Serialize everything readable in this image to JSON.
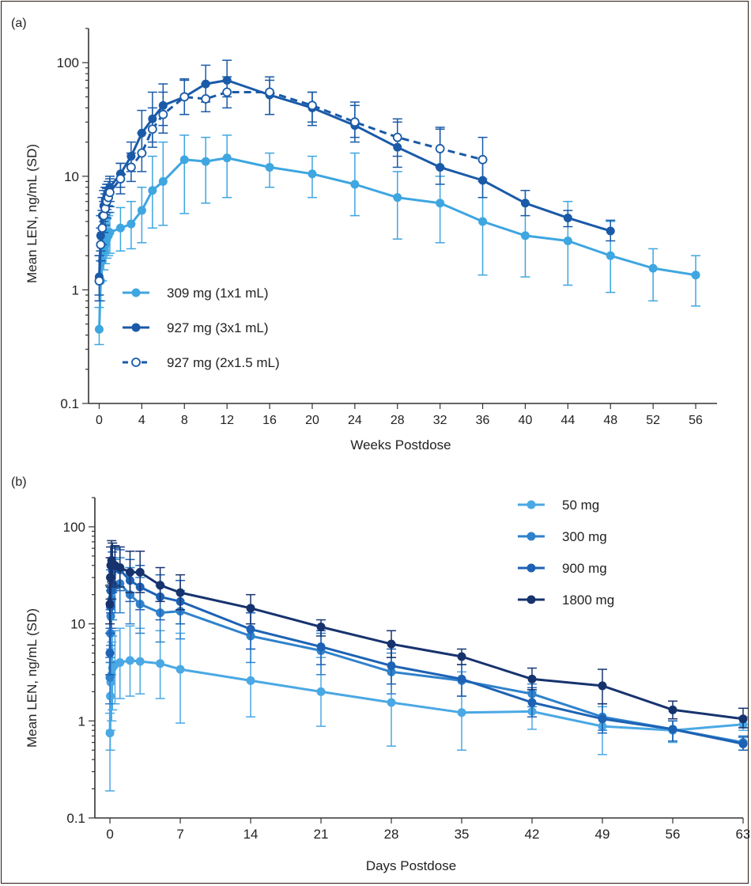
{
  "chart_data": [
    {
      "type": "line",
      "panel_label": "(a)",
      "xlabel": "Weeks Postdose",
      "ylabel": "Mean LEN, ng/mL (SD)",
      "y_scale": "log",
      "xlim": [
        -1,
        58
      ],
      "ylim": [
        0.1,
        200
      ],
      "x_ticks": [
        0,
        4,
        8,
        12,
        16,
        20,
        24,
        28,
        32,
        36,
        40,
        44,
        48,
        52,
        56
      ],
      "y_ticks": [
        0.1,
        1,
        10,
        100
      ],
      "y_tick_labels": [
        "0.1",
        "1",
        "10",
        "100"
      ],
      "grid": false,
      "legend_position": "bottom-left",
      "series": [
        {
          "name": "309 mg (1x1 mL)",
          "color": "#3ea6e0",
          "marker": "filled-circle",
          "line_style": "solid",
          "x": [
            0,
            0.14,
            0.29,
            0.43,
            0.57,
            0.71,
            0.86,
            1,
            2,
            3,
            4,
            5,
            6,
            8,
            10,
            12,
            16,
            20,
            24,
            28,
            32,
            36,
            40,
            44,
            48,
            52,
            56
          ],
          "y": [
            0.45,
            1.2,
            1.8,
            2.2,
            2.5,
            2.8,
            3.0,
            3.2,
            3.5,
            3.8,
            5.0,
            7.5,
            9.0,
            14,
            13.5,
            14.5,
            12,
            10.5,
            8.5,
            6.5,
            5.8,
            4.0,
            3.0,
            2.7,
            2.0,
            1.55,
            1.35
          ],
          "y_upper": [
            0.7,
            2.0,
            2.8,
            3.4,
            3.8,
            4.2,
            4.5,
            4.8,
            5.3,
            6.0,
            8.0,
            15,
            20,
            23,
            22,
            23,
            16,
            15,
            16,
            11,
            10,
            9.5,
            7.5,
            6.0,
            4.0,
            2.3,
            2.0
          ],
          "y_lower": [
            0.33,
            0.8,
            1.2,
            1.5,
            1.7,
            1.9,
            2.0,
            2.1,
            2.2,
            2.3,
            2.6,
            3.5,
            3.7,
            4.7,
            5.8,
            6.5,
            8.0,
            6.5,
            4.5,
            2.8,
            2.6,
            1.35,
            1.3,
            1.1,
            0.95,
            0.8,
            0.72
          ]
        },
        {
          "name": "927 mg (3x1 mL)",
          "color": "#1a5aa8",
          "marker": "filled-circle",
          "line_style": "solid",
          "x": [
            0,
            0.14,
            0.29,
            0.43,
            0.57,
            0.71,
            0.86,
            1,
            2,
            3,
            4,
            5,
            6,
            8,
            10,
            12,
            16,
            20,
            24,
            28,
            32,
            36,
            40,
            44,
            48
          ],
          "y": [
            1.3,
            3.0,
            4.5,
            5.5,
            6.2,
            6.8,
            7.2,
            8.0,
            10.5,
            15,
            24,
            32,
            42,
            50,
            65,
            70,
            52,
            40,
            28,
            18,
            12,
            9.2,
            5.8,
            4.3,
            3.3
          ],
          "y_upper": [
            2.0,
            4.5,
            6.5,
            7.5,
            8.0,
            8.5,
            9.0,
            10,
            13,
            20,
            38,
            55,
            65,
            72,
            95,
            105,
            75,
            55,
            42,
            30,
            27,
            14,
            7.5,
            5.0,
            4.1
          ],
          "y_lower": [
            0.9,
            2.2,
            3.2,
            4.0,
            4.6,
            5.1,
            5.5,
            6.0,
            8.0,
            11,
            16,
            20,
            28,
            35,
            45,
            50,
            35,
            28,
            20,
            12,
            8.5,
            6.5,
            4.5,
            3.6,
            2.7
          ]
        },
        {
          "name": "927 mg (2x1.5 mL)",
          "color": "#1a5aa8",
          "marker": "open-circle",
          "line_style": "dashed",
          "x": [
            0,
            0.14,
            0.29,
            0.43,
            0.57,
            0.71,
            0.86,
            1,
            2,
            3,
            4,
            5,
            6,
            8,
            10,
            12,
            16,
            20,
            24,
            28,
            32,
            36
          ],
          "y": [
            1.2,
            2.5,
            3.5,
            4.5,
            5.2,
            6.0,
            6.5,
            7.2,
            9.5,
            12,
            16,
            26,
            35,
            50,
            48,
            55,
            55,
            42,
            30,
            22,
            17.5,
            14
          ],
          "y_upper": [
            2.0,
            3.5,
            5.0,
            6.0,
            7.0,
            7.8,
            8.5,
            9.5,
            13,
            16,
            24,
            40,
            55,
            70,
            65,
            75,
            70,
            55,
            45,
            32,
            26,
            22
          ],
          "y_lower": [
            0.8,
            1.8,
            2.5,
            3.2,
            3.7,
            4.3,
            4.8,
            5.4,
            7.0,
            9.0,
            11,
            18,
            24,
            35,
            37,
            40,
            35,
            30,
            22,
            15,
            12,
            9.0
          ]
        }
      ]
    },
    {
      "type": "line",
      "panel_label": "(b)",
      "xlabel": "Days Postdose",
      "ylabel": "Mean LEN, ng/mL (SD)",
      "y_scale": "log",
      "xlim": [
        -1.5,
        63
      ],
      "ylim": [
        0.1,
        200
      ],
      "x_ticks": [
        0,
        7,
        14,
        21,
        28,
        35,
        42,
        49,
        56,
        63
      ],
      "y_ticks": [
        0.1,
        1,
        10,
        100
      ],
      "y_tick_labels": [
        "0.1",
        "1",
        "10",
        "100"
      ],
      "grid": false,
      "legend_position": "top-right",
      "series": [
        {
          "name": "50 mg",
          "color": "#4aa8e4",
          "marker": "filled-circle",
          "line_style": "solid",
          "x": [
            0,
            0.04,
            0.08,
            0.17,
            0.25,
            0.5,
            1,
            2,
            3,
            5,
            7,
            14,
            21,
            28,
            35,
            42,
            49,
            56,
            63
          ],
          "y": [
            0.75,
            1.8,
            2.5,
            3.0,
            3.5,
            3.8,
            4.0,
            4.2,
            4.1,
            3.9,
            3.4,
            2.6,
            2.0,
            1.55,
            1.22,
            1.25,
            0.88,
            0.8,
            0.92
          ],
          "y_upper": [
            1.2,
            4.0,
            5.5,
            6.5,
            7.5,
            8.5,
            9.0,
            9.5,
            9.0,
            8.5,
            8.0,
            5.5,
            4.5,
            4.5,
            3.2,
            2.0,
            1.4,
            1.0,
            1.1
          ],
          "y_lower": [
            0.19,
            0.5,
            0.8,
            1.0,
            1.3,
            1.5,
            1.7,
            1.8,
            1.9,
            1.7,
            0.95,
            1.1,
            0.88,
            0.55,
            0.5,
            0.82,
            0.45,
            0.6,
            0.8
          ]
        },
        {
          "name": "300 mg",
          "color": "#2f82cc",
          "marker": "filled-circle",
          "line_style": "solid",
          "x": [
            0,
            0.04,
            0.08,
            0.17,
            0.25,
            0.5,
            1,
            2,
            3,
            5,
            7,
            14,
            21,
            28,
            35,
            42,
            49,
            56,
            63
          ],
          "y": [
            2.8,
            8.0,
            12,
            18,
            22,
            25,
            26,
            20,
            16,
            13,
            13.5,
            7.5,
            5.3,
            3.2,
            2.6,
            1.9,
            1.1,
            0.82,
            0.6
          ],
          "y_upper": [
            4.5,
            14,
            22,
            32,
            40,
            46,
            48,
            38,
            30,
            25,
            22,
            13,
            8.0,
            5.0,
            3.8,
            2.4,
            1.5,
            1.0,
            0.7
          ],
          "y_lower": [
            1.5,
            4.0,
            6.0,
            9.0,
            11,
            13,
            13,
            10,
            8.0,
            6.5,
            7.0,
            4.0,
            3.0,
            1.9,
            1.8,
            1.4,
            0.8,
            0.62,
            0.5
          ]
        },
        {
          "name": "900 mg",
          "color": "#1d62b4",
          "marker": "filled-circle",
          "line_style": "solid",
          "x": [
            0,
            0.04,
            0.08,
            0.17,
            0.25,
            0.5,
            1,
            2,
            3,
            5,
            7,
            14,
            21,
            28,
            35,
            42,
            49,
            56,
            63
          ],
          "y": [
            5.0,
            15,
            22,
            30,
            35,
            38,
            36,
            28,
            24,
            19,
            17,
            8.8,
            5.8,
            3.7,
            2.7,
            1.55,
            1.05,
            0.82,
            0.58
          ],
          "y_upper": [
            8.0,
            24,
            36,
            48,
            55,
            60,
            58,
            46,
            40,
            32,
            28,
            13,
            8.5,
            5.5,
            3.8,
            2.2,
            1.5,
            1.0,
            0.68
          ],
          "y_lower": [
            3.0,
            9.0,
            13,
            18,
            21,
            23,
            22,
            17,
            14,
            11,
            10,
            5.5,
            3.8,
            2.4,
            1.8,
            1.1,
            0.75,
            0.62,
            0.5
          ]
        },
        {
          "name": "1800 mg",
          "color": "#17336e",
          "marker": "filled-circle",
          "line_style": "solid",
          "x": [
            0,
            0.04,
            0.08,
            0.17,
            0.25,
            0.5,
            1,
            2,
            3,
            5,
            7,
            14,
            21,
            28,
            35,
            42,
            49,
            56,
            63
          ],
          "y": [
            16,
            30,
            40,
            45,
            42,
            40,
            38,
            34,
            34,
            25,
            21,
            14.5,
            9.3,
            6.2,
            4.6,
            2.7,
            2.3,
            1.3,
            1.05
          ],
          "y_upper": [
            25,
            48,
            62,
            72,
            68,
            64,
            62,
            56,
            56,
            38,
            32,
            20,
            11,
            8.5,
            5.5,
            3.5,
            3.4,
            1.6,
            1.35
          ],
          "y_lower": [
            10,
            18,
            24,
            27,
            26,
            25,
            24,
            21,
            21,
            17,
            14,
            10,
            7.5,
            4.5,
            3.8,
            2.1,
            1.5,
            1.05,
            0.85
          ]
        }
      ]
    }
  ]
}
